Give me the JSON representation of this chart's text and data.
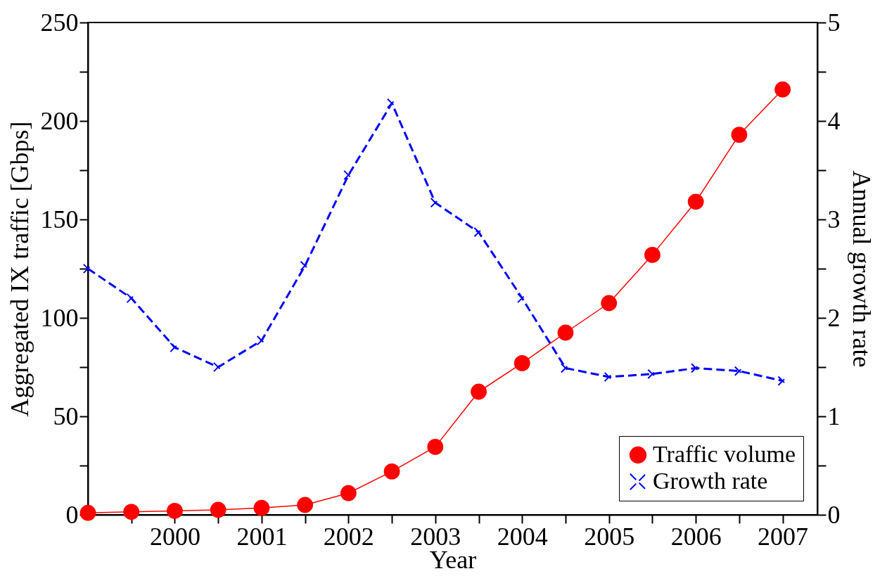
{
  "chart_data": {
    "type": "line",
    "xlabel": "Year",
    "ylabel": "Aggregated IX traffic [Gbps]",
    "y2label": "Annual growth rate",
    "x": [
      1999,
      1999.5,
      2000,
      2000.5,
      2001,
      2001.5,
      2002,
      2002.5,
      2003,
      2003.5,
      2004,
      2004.5,
      2005,
      2005.5,
      2006,
      2006.5,
      2007
    ],
    "series": [
      {
        "name": "Traffic volume",
        "color": "#ff0000",
        "marker": "circle",
        "line_style": "solid",
        "values": [
          1,
          1.5,
          2,
          2.5,
          3.5,
          5,
          11,
          22,
          34.5,
          62.5,
          77,
          92.5,
          107.5,
          132,
          159,
          193,
          216
        ]
      },
      {
        "name": "Growth rate",
        "color": "#0000ff",
        "marker": "cross",
        "line_style": "dashed",
        "axis": "y2",
        "values": [
          2.5,
          2.2,
          1.7,
          1.5,
          1.77,
          2.53,
          3.45,
          4.18,
          3.17,
          2.87,
          2.2,
          1.49,
          1.4,
          1.43,
          1.49,
          1.46,
          1.36
        ]
      }
    ],
    "xlim": [
      1999,
      2007.4
    ],
    "xticks": [
      {
        "value": 1999.5,
        "label": null
      },
      2000,
      {
        "value": 2000.5,
        "label": null
      },
      2001,
      {
        "value": 2001.5,
        "label": null
      },
      2002,
      {
        "value": 2002.5,
        "label": null
      },
      2003,
      {
        "value": 2003.5,
        "label": null
      },
      2004,
      {
        "value": 2004.5,
        "label": null
      },
      2005,
      {
        "value": 2005.5,
        "label": null
      },
      2006,
      {
        "value": 2006.5,
        "label": null
      },
      2007
    ],
    "ylim": [
      0,
      250
    ],
    "yticks": [
      0,
      {
        "value": 25,
        "label": null
      },
      50,
      {
        "value": 75,
        "label": null
      },
      100,
      {
        "value": 125,
        "label": null
      },
      150,
      {
        "value": 175,
        "label": null
      },
      200,
      {
        "value": 225,
        "label": null
      },
      250
    ],
    "y2lim": [
      0,
      5
    ],
    "y2ticks": [
      0,
      {
        "value": 0.5,
        "label": null
      },
      1,
      {
        "value": 1.5,
        "label": null
      },
      2,
      {
        "value": 2.5,
        "label": null
      },
      3,
      {
        "value": 3.5,
        "label": null
      },
      4,
      {
        "value": 4.5,
        "label": null
      },
      5
    ],
    "legend": "bottom right",
    "grid": false
  }
}
